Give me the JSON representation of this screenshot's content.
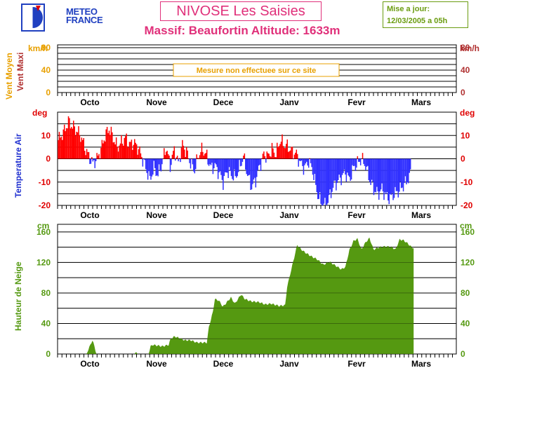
{
  "header": {
    "logo_line1": "METEO",
    "logo_line2": "FRANCE",
    "title": "NIVOSE Les Saisies",
    "subtitle": "Massif: Beaufortin Altitude: 1633m",
    "update_line1": "Mise a jour:",
    "update_line2": "12/03/2005 a 05h"
  },
  "colors": {
    "wind_avg": "#e8a000",
    "wind_max": "#b03030",
    "temp_unit": "#e00000",
    "temp_axis_label": "#2030d0",
    "temp_pos": "#ff0000",
    "temp_neg": "#3030ff",
    "snow": "#559911",
    "snow_axis": "#559911"
  },
  "chart_data": [
    {
      "type": "bar",
      "panel": "wind",
      "ylabel_left_1": "Vent Moyen",
      "ylabel_left_2": "Vent Maxi",
      "unit_left": "km/h",
      "unit_right": "km/h",
      "ylim": [
        0,
        80
      ],
      "yticks": [
        0,
        40,
        80
      ],
      "months": [
        "Octo",
        "Nove",
        "Dece",
        "Janv",
        "Fevr",
        "Mars"
      ],
      "notice": "Mesure non effectuee sur ce site",
      "values": []
    },
    {
      "type": "bar",
      "panel": "temperature",
      "ylabel": "Temperature Air",
      "unit_left": "deg",
      "unit_right": "deg",
      "ylim": [
        -20,
        20
      ],
      "yticks": [
        -20,
        -10,
        0,
        10
      ],
      "months": [
        "Octo",
        "Nove",
        "Dece",
        "Janv",
        "Fevr",
        "Mars"
      ],
      "day_offset": 0,
      "keypoints_day_value": [
        [
          0,
          8
        ],
        [
          3,
          12
        ],
        [
          5,
          16
        ],
        [
          8,
          13
        ],
        [
          11,
          10
        ],
        [
          13,
          5
        ],
        [
          15,
          1
        ],
        [
          17,
          -2
        ],
        [
          19,
          0
        ],
        [
          21,
          4
        ],
        [
          23,
          10
        ],
        [
          25,
          13
        ],
        [
          27,
          9
        ],
        [
          29,
          5
        ],
        [
          31,
          7
        ],
        [
          33,
          9
        ],
        [
          35,
          6
        ],
        [
          37,
          7
        ],
        [
          39,
          5
        ],
        [
          41,
          1
        ],
        [
          43,
          -4
        ],
        [
          45,
          -9
        ],
        [
          47,
          -4
        ],
        [
          49,
          -7
        ],
        [
          51,
          -2
        ],
        [
          53,
          5
        ],
        [
          55,
          -3
        ],
        [
          57,
          4
        ],
        [
          59,
          -2
        ],
        [
          61,
          6
        ],
        [
          63,
          3
        ],
        [
          65,
          -2
        ],
        [
          67,
          -5
        ],
        [
          69,
          2
        ],
        [
          71,
          4
        ],
        [
          73,
          1
        ],
        [
          75,
          -4
        ],
        [
          77,
          -3
        ],
        [
          79,
          -6
        ],
        [
          81,
          -10
        ],
        [
          83,
          -5
        ],
        [
          85,
          -7
        ],
        [
          87,
          -8
        ],
        [
          89,
          -4
        ],
        [
          91,
          1
        ],
        [
          93,
          -7
        ],
        [
          95,
          -12
        ],
        [
          97,
          -9
        ],
        [
          99,
          -3
        ],
        [
          101,
          2
        ],
        [
          103,
          1
        ],
        [
          105,
          4
        ],
        [
          107,
          2
        ],
        [
          109,
          8
        ],
        [
          111,
          6
        ],
        [
          113,
          5
        ],
        [
          115,
          3
        ],
        [
          117,
          2
        ],
        [
          119,
          -2
        ],
        [
          121,
          -4
        ],
        [
          123,
          -1
        ],
        [
          125,
          -5
        ],
        [
          127,
          -14
        ],
        [
          129,
          -19
        ],
        [
          131,
          -20
        ],
        [
          133,
          -17
        ],
        [
          135,
          -12
        ],
        [
          137,
          -10
        ],
        [
          139,
          -8
        ],
        [
          141,
          -6
        ],
        [
          143,
          -9
        ],
        [
          145,
          -4
        ],
        [
          147,
          -2
        ],
        [
          149,
          0
        ],
        [
          151,
          -3
        ],
        [
          153,
          -9
        ],
        [
          155,
          -13
        ],
        [
          157,
          -15
        ],
        [
          159,
          -13
        ],
        [
          161,
          -16
        ],
        [
          163,
          -17
        ],
        [
          165,
          -15
        ],
        [
          167,
          -14
        ],
        [
          169,
          -12
        ],
        [
          171,
          -10
        ],
        [
          173,
          -7
        ]
      ]
    },
    {
      "type": "area",
      "panel": "snow",
      "ylabel": "Hauteur de Neige",
      "unit_left": "cm",
      "unit_right": "cm",
      "ylim": [
        0,
        170
      ],
      "yticks": [
        0,
        40,
        80,
        120,
        160
      ],
      "months": [
        "Octo",
        "Nove",
        "Dece",
        "Janv",
        "Fevr",
        "Mars"
      ],
      "keypoints_day_value": [
        [
          0,
          0
        ],
        [
          14,
          0
        ],
        [
          15,
          6
        ],
        [
          16,
          12
        ],
        [
          17,
          18
        ],
        [
          18,
          10
        ],
        [
          19,
          0
        ],
        [
          38,
          0
        ],
        [
          39,
          2
        ],
        [
          40,
          0
        ],
        [
          45,
          0
        ],
        [
          46,
          10
        ],
        [
          47,
          12
        ],
        [
          52,
          10
        ],
        [
          55,
          12
        ],
        [
          56,
          20
        ],
        [
          58,
          23
        ],
        [
          61,
          20
        ],
        [
          63,
          18
        ],
        [
          66,
          18
        ],
        [
          69,
          15
        ],
        [
          74,
          15
        ],
        [
          75,
          35
        ],
        [
          77,
          55
        ],
        [
          78,
          72
        ],
        [
          80,
          70
        ],
        [
          82,
          62
        ],
        [
          86,
          74
        ],
        [
          88,
          66
        ],
        [
          91,
          78
        ],
        [
          93,
          72
        ],
        [
          96,
          69
        ],
        [
          100,
          68
        ],
        [
          103,
          65
        ],
        [
          106,
          66
        ],
        [
          110,
          63
        ],
        [
          113,
          64
        ],
        [
          114,
          88
        ],
        [
          116,
          110
        ],
        [
          118,
          132
        ],
        [
          119,
          143
        ],
        [
          121,
          137
        ],
        [
          123,
          133
        ],
        [
          126,
          128
        ],
        [
          129,
          124
        ],
        [
          132,
          117
        ],
        [
          135,
          121
        ],
        [
          138,
          116
        ],
        [
          141,
          111
        ],
        [
          143,
          114
        ],
        [
          145,
          136
        ],
        [
          147,
          148
        ],
        [
          149,
          151
        ],
        [
          151,
          137
        ],
        [
          153,
          146
        ],
        [
          155,
          152
        ],
        [
          157,
          137
        ],
        [
          160,
          140
        ],
        [
          163,
          141
        ],
        [
          166,
          140
        ],
        [
          168,
          137
        ],
        [
          170,
          150
        ],
        [
          172,
          149
        ],
        [
          174,
          145
        ],
        [
          176,
          140
        ],
        [
          177,
          139
        ]
      ]
    }
  ]
}
